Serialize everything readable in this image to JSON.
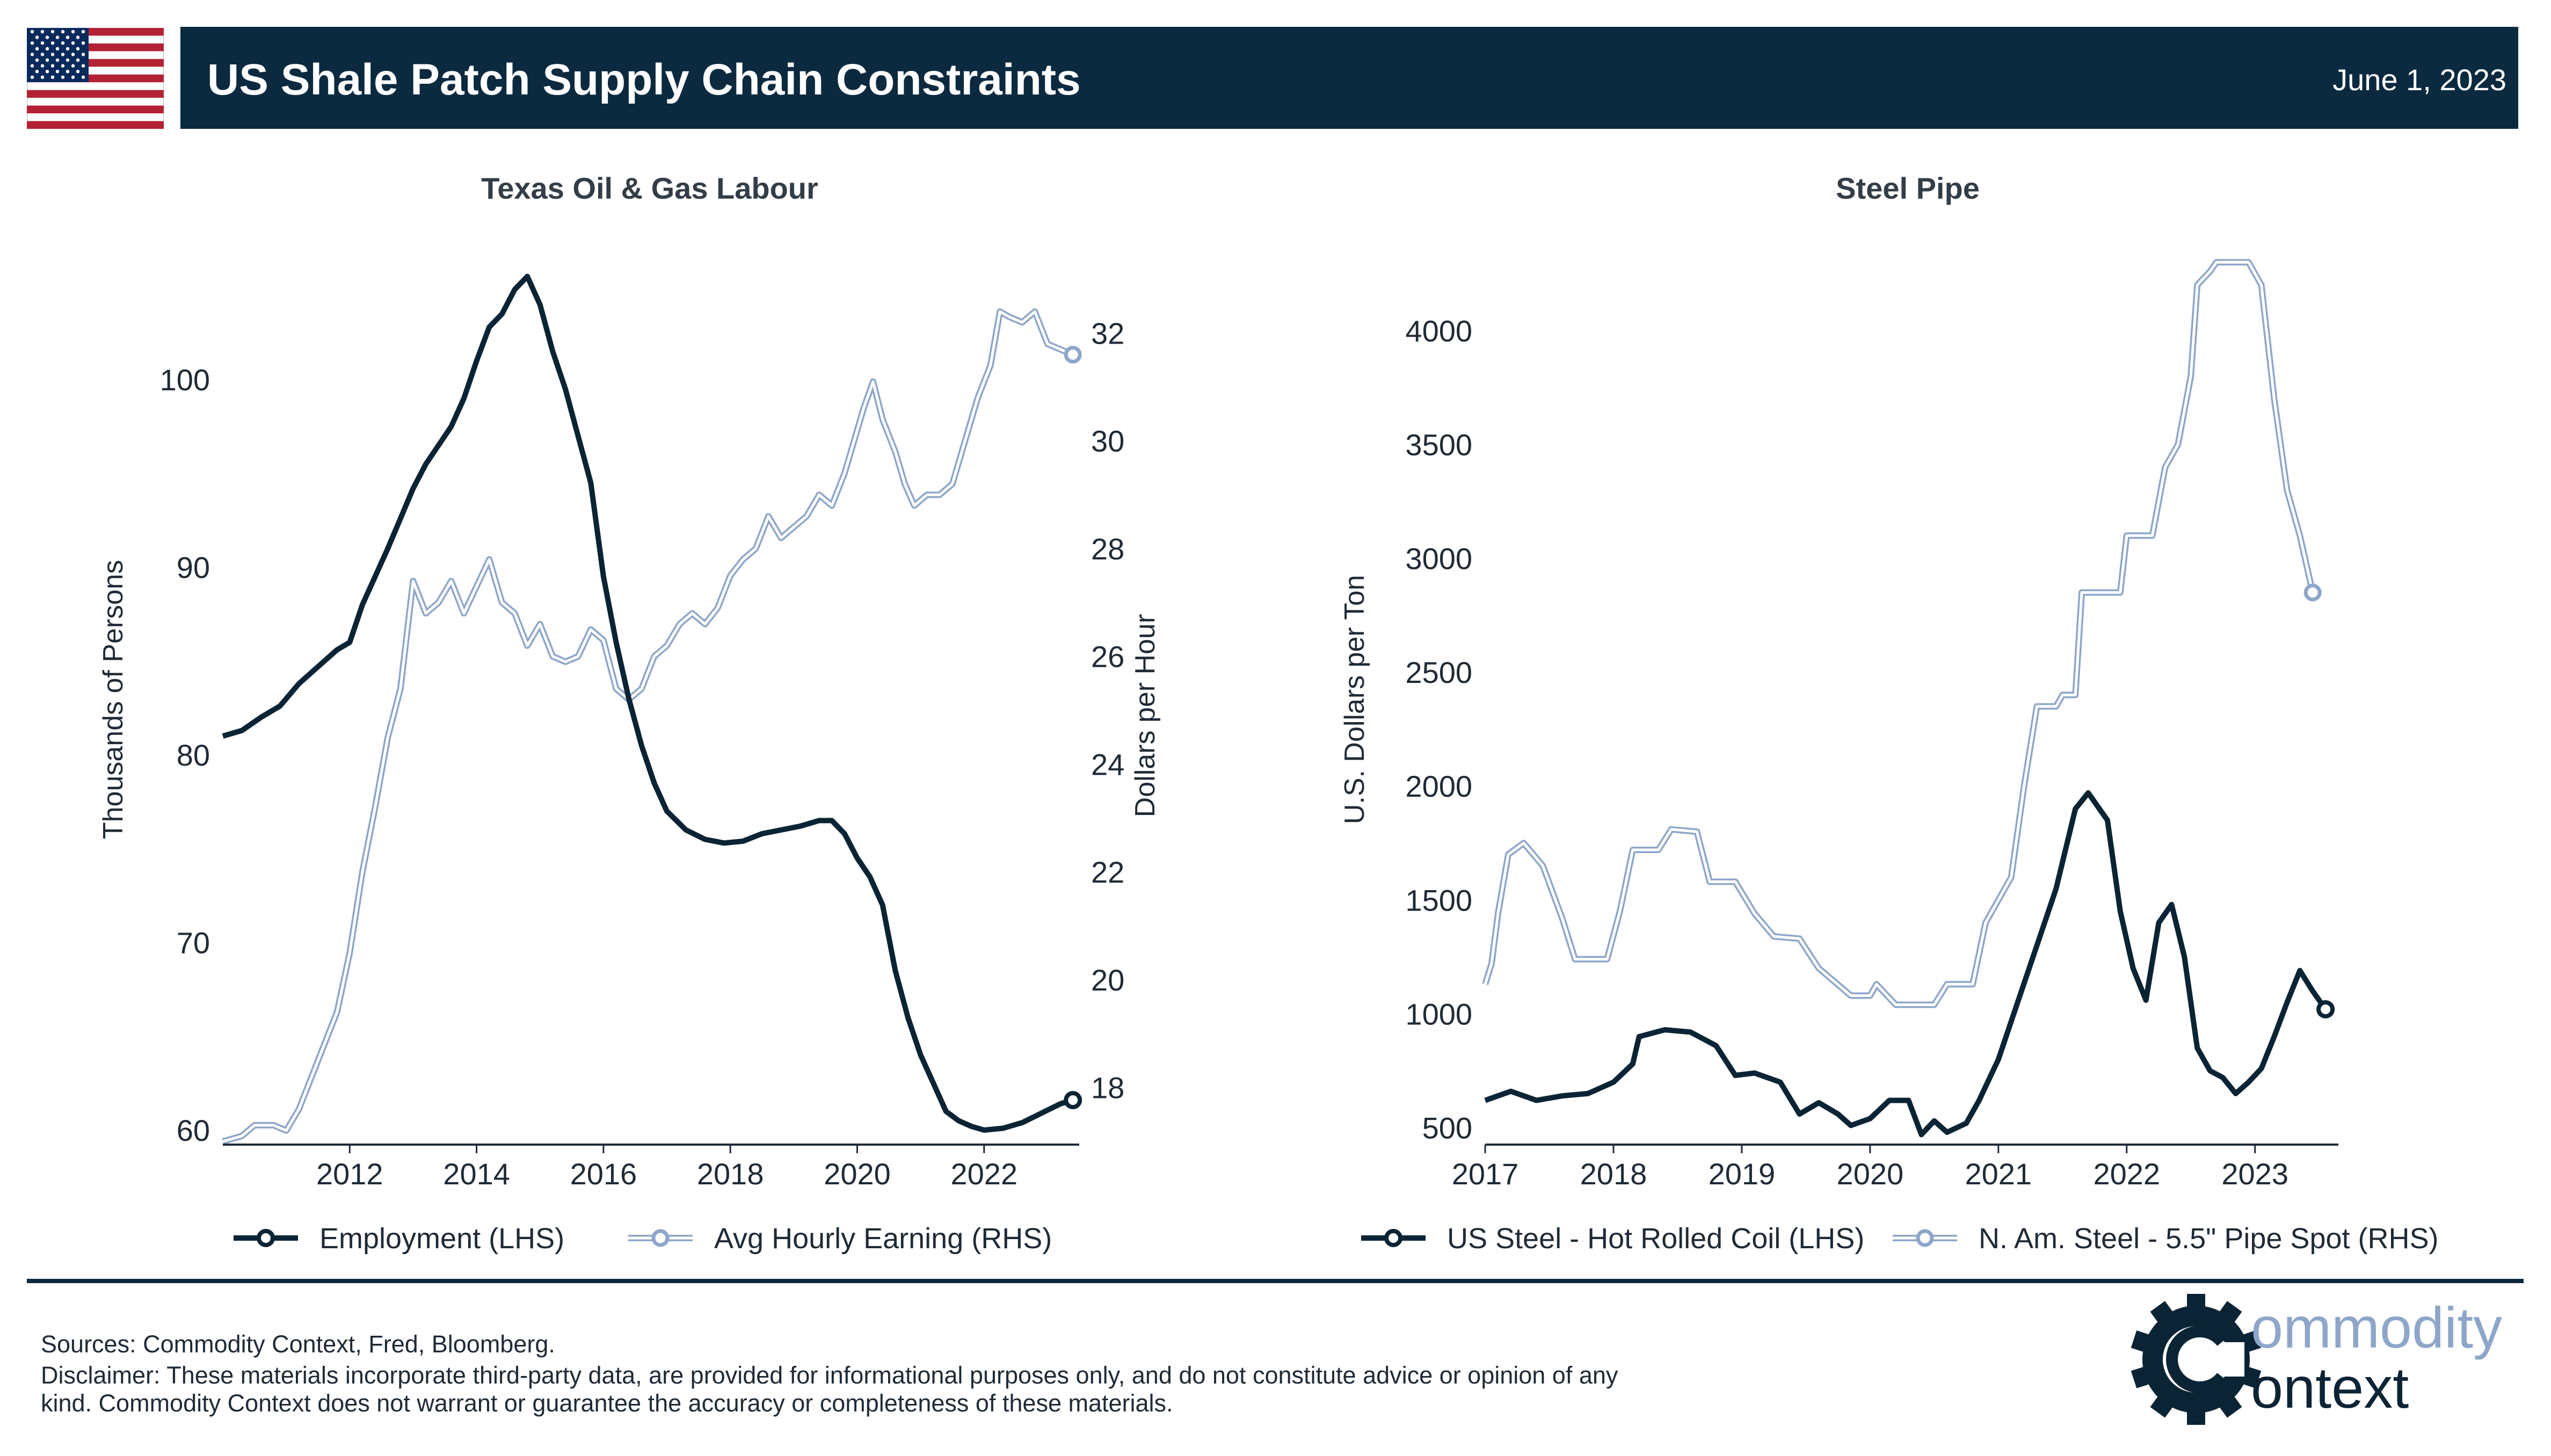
{
  "header": {
    "title": "US Shale Patch Supply Chain Constraints",
    "date": "June 1, 2023",
    "flag_icon": "us-flag-icon"
  },
  "colors": {
    "header_bg": "#0b2a40",
    "dark_series": "#0b2435",
    "light_series_edge": "#8ea6c9",
    "light_series_fill": "#ffffff"
  },
  "chart_data": [
    {
      "type": "line",
      "title": "Texas Oil & Gas Labour",
      "xlabel": "",
      "x_ticks": [
        "2012",
        "2014",
        "2016",
        "2018",
        "2020",
        "2022"
      ],
      "xlim": [
        2010.0,
        2023.5
      ],
      "y_left": {
        "label": "Thousands of Persons",
        "ticks": [
          60,
          70,
          80,
          90,
          100
        ],
        "lim": [
          59.4,
          106.5
        ]
      },
      "y_right": {
        "label": "Dollars per Hour",
        "ticks": [
          18,
          20,
          22,
          24,
          26,
          28,
          30,
          32
        ],
        "lim": [
          17.0,
          33.4
        ]
      },
      "legend_position": "bottom",
      "series": [
        {
          "name": "Employment (LHS)",
          "axis": "left",
          "style": "dark",
          "points": [
            [
              2010.0,
              81.0
            ],
            [
              2010.3,
              81.3
            ],
            [
              2010.6,
              82.0
            ],
            [
              2010.9,
              82.6
            ],
            [
              2011.2,
              83.8
            ],
            [
              2011.5,
              84.7
            ],
            [
              2011.8,
              85.6
            ],
            [
              2012.0,
              86.0
            ],
            [
              2012.2,
              88.0
            ],
            [
              2012.4,
              89.5
            ],
            [
              2012.6,
              91.0
            ],
            [
              2012.8,
              92.6
            ],
            [
              2013.0,
              94.2
            ],
            [
              2013.2,
              95.5
            ],
            [
              2013.4,
              96.5
            ],
            [
              2013.6,
              97.5
            ],
            [
              2013.8,
              99.0
            ],
            [
              2014.0,
              101.0
            ],
            [
              2014.2,
              102.8
            ],
            [
              2014.4,
              103.5
            ],
            [
              2014.6,
              104.8
            ],
            [
              2014.8,
              105.5
            ],
            [
              2015.0,
              104.0
            ],
            [
              2015.2,
              101.5
            ],
            [
              2015.4,
              99.5
            ],
            [
              2015.6,
              97.0
            ],
            [
              2015.8,
              94.5
            ],
            [
              2016.0,
              89.5
            ],
            [
              2016.2,
              86.0
            ],
            [
              2016.4,
              83.0
            ],
            [
              2016.6,
              80.5
            ],
            [
              2016.8,
              78.5
            ],
            [
              2017.0,
              77.0
            ],
            [
              2017.3,
              76.0
            ],
            [
              2017.6,
              75.5
            ],
            [
              2017.9,
              75.3
            ],
            [
              2018.2,
              75.4
            ],
            [
              2018.5,
              75.8
            ],
            [
              2018.8,
              76.0
            ],
            [
              2019.1,
              76.2
            ],
            [
              2019.4,
              76.5
            ],
            [
              2019.6,
              76.5
            ],
            [
              2019.8,
              75.8
            ],
            [
              2020.0,
              74.5
            ],
            [
              2020.2,
              73.5
            ],
            [
              2020.4,
              72.0
            ],
            [
              2020.6,
              68.5
            ],
            [
              2020.8,
              66.0
            ],
            [
              2021.0,
              64.0
            ],
            [
              2021.2,
              62.5
            ],
            [
              2021.4,
              61.0
            ],
            [
              2021.6,
              60.5
            ],
            [
              2021.8,
              60.2
            ],
            [
              2022.0,
              60.0
            ],
            [
              2022.3,
              60.1
            ],
            [
              2022.6,
              60.4
            ],
            [
              2022.9,
              60.9
            ],
            [
              2023.2,
              61.4
            ],
            [
              2023.4,
              61.6
            ]
          ]
        },
        {
          "name": "Avg Hourly Earning (RHS)",
          "axis": "right",
          "style": "light",
          "points": [
            [
              2010.0,
              17.0
            ],
            [
              2010.3,
              17.1
            ],
            [
              2010.5,
              17.3
            ],
            [
              2010.8,
              17.3
            ],
            [
              2011.0,
              17.2
            ],
            [
              2011.2,
              17.6
            ],
            [
              2011.4,
              18.2
            ],
            [
              2011.6,
              18.8
            ],
            [
              2011.8,
              19.4
            ],
            [
              2012.0,
              20.5
            ],
            [
              2012.2,
              22.0
            ],
            [
              2012.4,
              23.2
            ],
            [
              2012.6,
              24.5
            ],
            [
              2012.8,
              25.4
            ],
            [
              2013.0,
              27.4
            ],
            [
              2013.2,
              26.8
            ],
            [
              2013.4,
              27.0
            ],
            [
              2013.6,
              27.4
            ],
            [
              2013.8,
              26.8
            ],
            [
              2014.0,
              27.3
            ],
            [
              2014.2,
              27.8
            ],
            [
              2014.4,
              27.0
            ],
            [
              2014.6,
              26.8
            ],
            [
              2014.8,
              26.2
            ],
            [
              2015.0,
              26.6
            ],
            [
              2015.2,
              26.0
            ],
            [
              2015.4,
              25.9
            ],
            [
              2015.6,
              26.0
            ],
            [
              2015.8,
              26.5
            ],
            [
              2016.0,
              26.3
            ],
            [
              2016.2,
              25.4
            ],
            [
              2016.4,
              25.2
            ],
            [
              2016.6,
              25.4
            ],
            [
              2016.8,
              26.0
            ],
            [
              2017.0,
              26.2
            ],
            [
              2017.2,
              26.6
            ],
            [
              2017.4,
              26.8
            ],
            [
              2017.6,
              26.6
            ],
            [
              2017.8,
              26.9
            ],
            [
              2018.0,
              27.5
            ],
            [
              2018.2,
              27.8
            ],
            [
              2018.4,
              28.0
            ],
            [
              2018.6,
              28.6
            ],
            [
              2018.8,
              28.2
            ],
            [
              2019.0,
              28.4
            ],
            [
              2019.2,
              28.6
            ],
            [
              2019.4,
              29.0
            ],
            [
              2019.6,
              28.8
            ],
            [
              2019.8,
              29.4
            ],
            [
              2020.0,
              30.2
            ],
            [
              2020.1,
              30.6
            ],
            [
              2020.25,
              31.1
            ],
            [
              2020.4,
              30.4
            ],
            [
              2020.6,
              29.8
            ],
            [
              2020.75,
              29.2
            ],
            [
              2020.9,
              28.8
            ],
            [
              2021.1,
              29.0
            ],
            [
              2021.3,
              29.0
            ],
            [
              2021.5,
              29.2
            ],
            [
              2021.7,
              30.0
            ],
            [
              2021.9,
              30.8
            ],
            [
              2022.1,
              31.4
            ],
            [
              2022.25,
              32.4
            ],
            [
              2022.4,
              32.3
            ],
            [
              2022.6,
              32.2
            ],
            [
              2022.8,
              32.4
            ],
            [
              2023.0,
              31.8
            ],
            [
              2023.2,
              31.7
            ],
            [
              2023.4,
              31.6
            ]
          ]
        }
      ]
    },
    {
      "type": "line",
      "title": "Steel Pipe",
      "xlabel": "",
      "x_ticks": [
        "2017",
        "2018",
        "2019",
        "2020",
        "2021",
        "2022",
        "2023"
      ],
      "xlim": [
        2017.0,
        2023.65
      ],
      "y_left": {
        "label": "U.S. Dollars per Ton",
        "ticks": [
          500,
          1000,
          1500,
          2000,
          2500,
          3000,
          3500,
          4000
        ],
        "lim": [
          440,
          4320
        ]
      },
      "legend_position": "bottom",
      "series": [
        {
          "name": "US Steel - Hot Rolled Coil (LHS)",
          "axis": "left",
          "style": "dark",
          "points": [
            [
              2017.0,
              620
            ],
            [
              2017.2,
              660
            ],
            [
              2017.4,
              620
            ],
            [
              2017.6,
              640
            ],
            [
              2017.8,
              650
            ],
            [
              2018.0,
              700
            ],
            [
              2018.15,
              780
            ],
            [
              2018.2,
              900
            ],
            [
              2018.4,
              930
            ],
            [
              2018.6,
              920
            ],
            [
              2018.8,
              860
            ],
            [
              2018.95,
              730
            ],
            [
              2019.1,
              740
            ],
            [
              2019.3,
              700
            ],
            [
              2019.45,
              560
            ],
            [
              2019.6,
              610
            ],
            [
              2019.75,
              560
            ],
            [
              2019.85,
              510
            ],
            [
              2020.0,
              540
            ],
            [
              2020.15,
              620
            ],
            [
              2020.3,
              620
            ],
            [
              2020.4,
              470
            ],
            [
              2020.5,
              530
            ],
            [
              2020.6,
              480
            ],
            [
              2020.75,
              520
            ],
            [
              2020.85,
              620
            ],
            [
              2021.0,
              800
            ],
            [
              2021.15,
              1050
            ],
            [
              2021.3,
              1300
            ],
            [
              2021.45,
              1550
            ],
            [
              2021.6,
              1900
            ],
            [
              2021.7,
              1970
            ],
            [
              2021.85,
              1850
            ],
            [
              2021.95,
              1450
            ],
            [
              2022.05,
              1200
            ],
            [
              2022.15,
              1060
            ],
            [
              2022.25,
              1400
            ],
            [
              2022.35,
              1480
            ],
            [
              2022.45,
              1250
            ],
            [
              2022.55,
              850
            ],
            [
              2022.65,
              750
            ],
            [
              2022.75,
              720
            ],
            [
              2022.85,
              650
            ],
            [
              2022.95,
              700
            ],
            [
              2023.05,
              760
            ],
            [
              2023.15,
              900
            ],
            [
              2023.25,
              1050
            ],
            [
              2023.35,
              1190
            ],
            [
              2023.45,
              1100
            ],
            [
              2023.55,
              1020
            ]
          ]
        },
        {
          "name": "N. Am. Steel - 5.5\" Pipe Spot (RHS)",
          "axis": "left",
          "style": "light",
          "points": [
            [
              2017.0,
              1130
            ],
            [
              2017.05,
              1220
            ],
            [
              2017.1,
              1440
            ],
            [
              2017.18,
              1700
            ],
            [
              2017.3,
              1750
            ],
            [
              2017.45,
              1650
            ],
            [
              2017.6,
              1420
            ],
            [
              2017.7,
              1240
            ],
            [
              2017.95,
              1240
            ],
            [
              2018.05,
              1450
            ],
            [
              2018.15,
              1720
            ],
            [
              2018.35,
              1720
            ],
            [
              2018.45,
              1810
            ],
            [
              2018.65,
              1800
            ],
            [
              2018.75,
              1580
            ],
            [
              2018.95,
              1580
            ],
            [
              2019.1,
              1440
            ],
            [
              2019.25,
              1340
            ],
            [
              2019.45,
              1330
            ],
            [
              2019.6,
              1200
            ],
            [
              2019.85,
              1080
            ],
            [
              2020.0,
              1080
            ],
            [
              2020.05,
              1130
            ],
            [
              2020.2,
              1040
            ],
            [
              2020.5,
              1040
            ],
            [
              2020.6,
              1130
            ],
            [
              2020.8,
              1130
            ],
            [
              2020.9,
              1400
            ],
            [
              2021.0,
              1500
            ],
            [
              2021.1,
              1600
            ],
            [
              2021.2,
              2000
            ],
            [
              2021.3,
              2350
            ],
            [
              2021.45,
              2350
            ],
            [
              2021.5,
              2400
            ],
            [
              2021.6,
              2400
            ],
            [
              2021.65,
              2850
            ],
            [
              2021.95,
              2850
            ],
            [
              2022.0,
              3100
            ],
            [
              2022.2,
              3100
            ],
            [
              2022.3,
              3400
            ],
            [
              2022.4,
              3500
            ],
            [
              2022.5,
              3800
            ],
            [
              2022.55,
              4200
            ],
            [
              2022.65,
              4260
            ],
            [
              2022.7,
              4300
            ],
            [
              2022.95,
              4300
            ],
            [
              2023.05,
              4200
            ],
            [
              2023.15,
              3700
            ],
            [
              2023.25,
              3300
            ],
            [
              2023.35,
              3100
            ],
            [
              2023.45,
              2850
            ]
          ]
        }
      ]
    }
  ],
  "footer": {
    "sources": "Sources: Commodity Context, Fred, Bloomberg.",
    "disclaimer": "Disclaimer: These materials incorporate third-party data, are provided for informational purposes only, and do not constitute advice or opinion of any kind. Commodity Context does not warrant or guarantee the accuracy or completeness of these materials.",
    "logo_line1": "ommodity",
    "logo_line2": "ontext",
    "logo_icon": "gear-c-logo-icon"
  }
}
